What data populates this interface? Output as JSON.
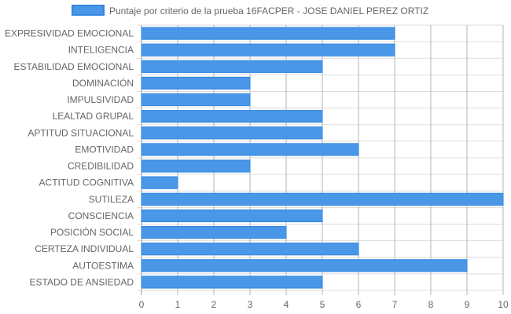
{
  "chart_data": {
    "type": "bar",
    "orientation": "horizontal",
    "categories": [
      "EXPRESIVIDAD EMOCIONAL",
      "INTELIGENCIA",
      "ESTABILIDAD EMOCIONAL",
      "DOMINACIÓN",
      "IMPULSIVIDAD",
      "LEALTAD GRUPAL",
      "APTITUD SITUACIONAL",
      "EMOTIVIDAD",
      "CREDIBILIDAD",
      "ACTITUD COGNITIVA",
      "SUTILEZA",
      "CONSCIENCIA",
      "POSICIÓN SOCIAL",
      "CERTEZA INDIVIDUAL",
      "AUTOESTIMA",
      "ESTADO DE ANSIEDAD"
    ],
    "series": [
      {
        "name": "Puntaje por criterio de la prueba 16FACPER - JOSE DANIEL PEREZ ORTIZ",
        "values": [
          7,
          7,
          5,
          3,
          3,
          5,
          5,
          6,
          3,
          1,
          10,
          5,
          4,
          6,
          9,
          5
        ]
      }
    ],
    "xlim": [
      0,
      10
    ],
    "xticks": [
      "0",
      "1",
      "2",
      "3",
      "4",
      "5",
      "6",
      "7",
      "8",
      "9",
      "10"
    ],
    "grid": true,
    "legend_position": "top",
    "colors": {
      "bar_fill": "#4a97e8",
      "bar_stroke": "#2f86e0",
      "grid": "#dddddd",
      "grid_dark": "#b5b5b5"
    }
  }
}
